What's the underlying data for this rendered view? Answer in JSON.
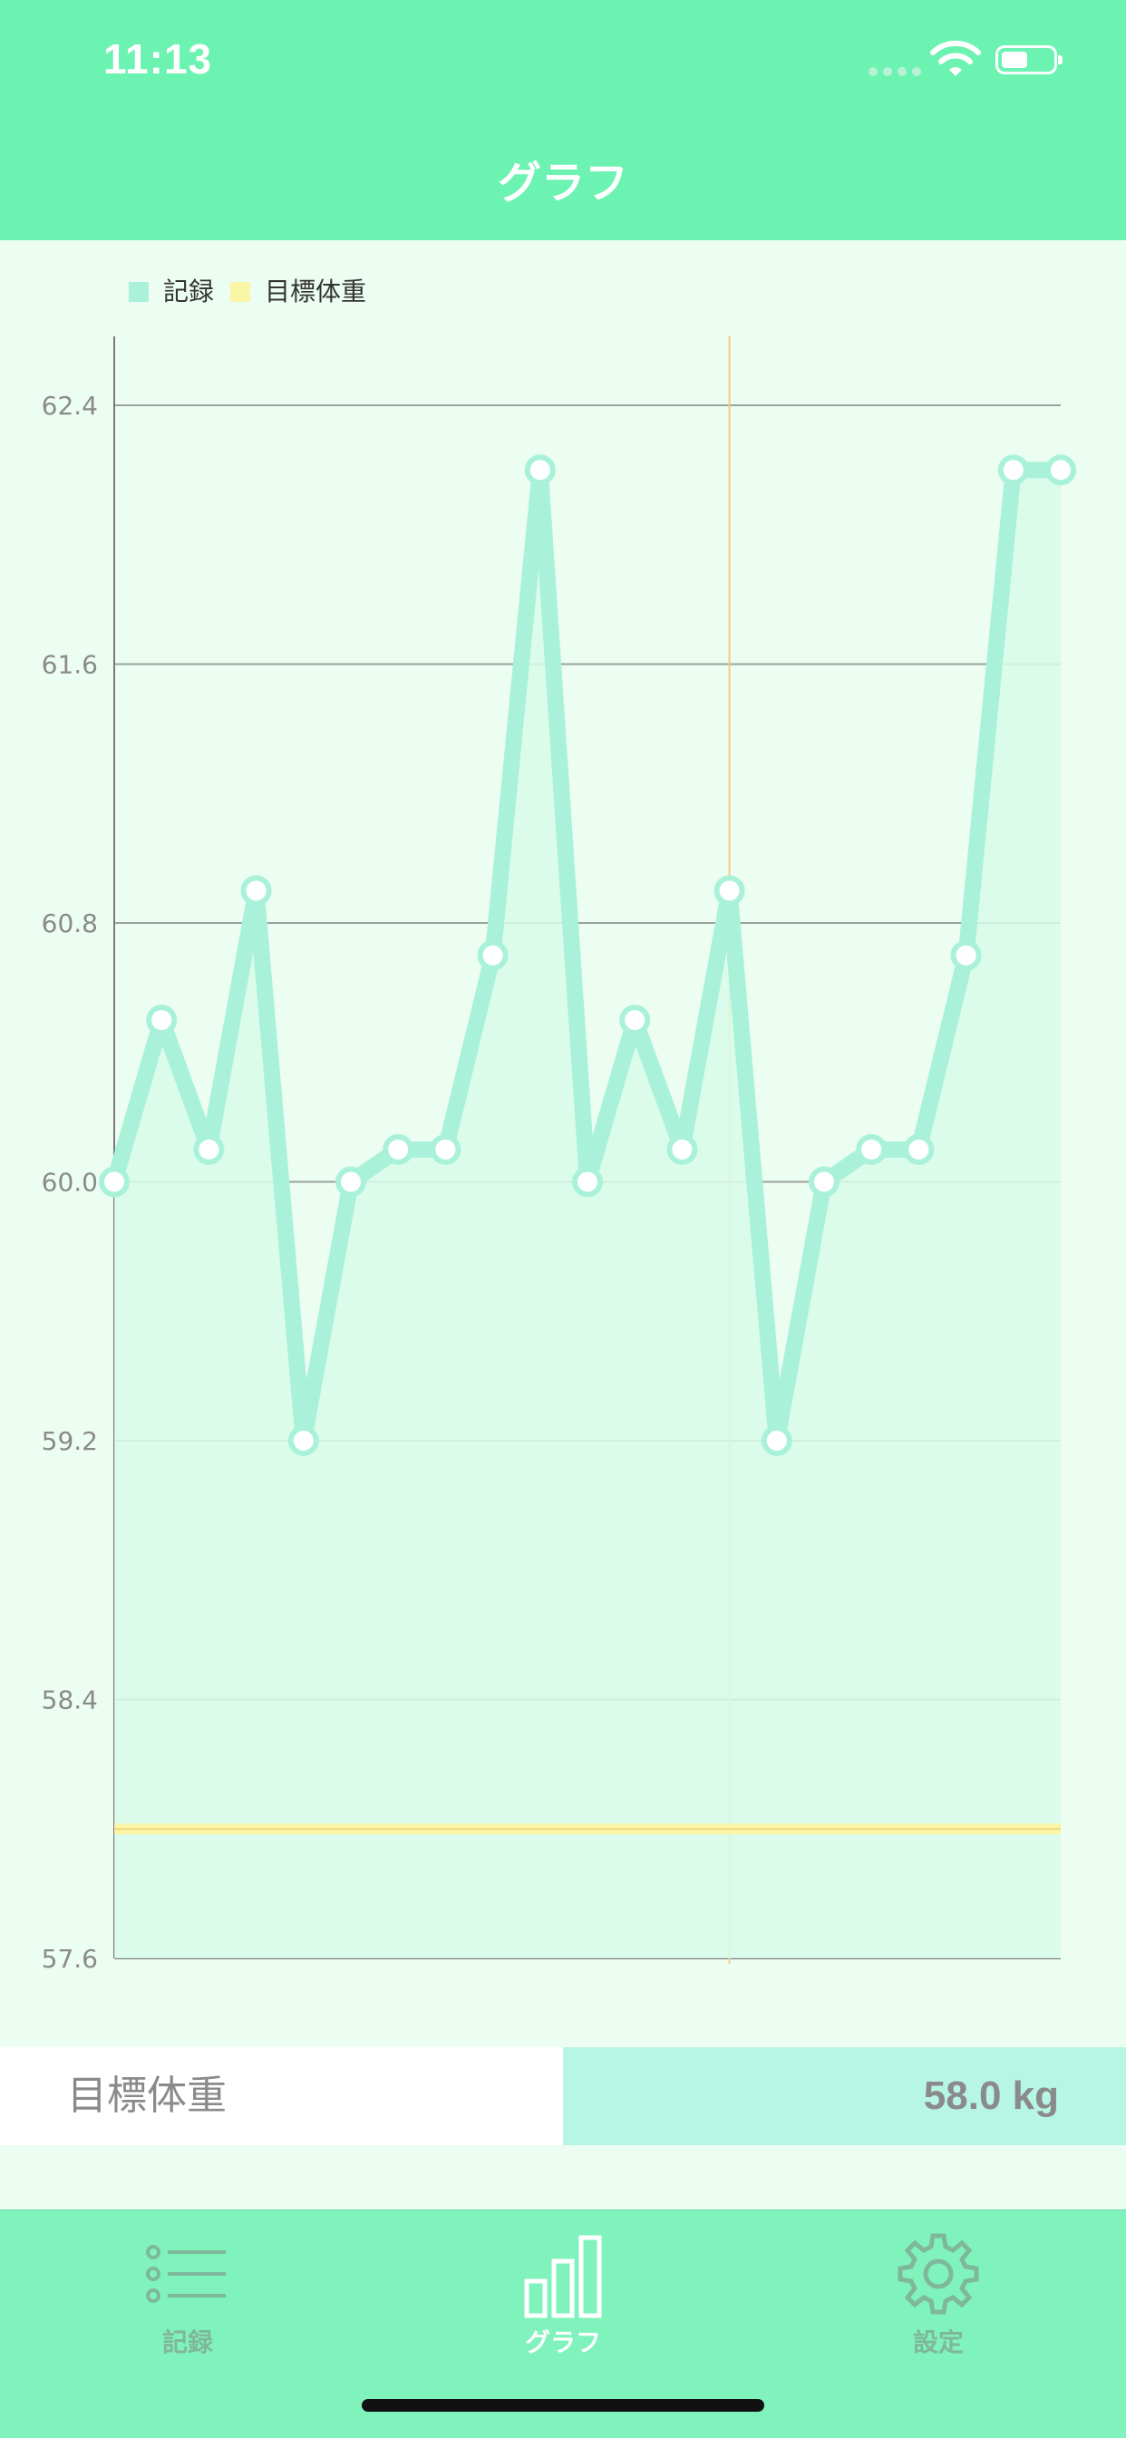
{
  "status_bar": {
    "time": "11:13"
  },
  "nav": {
    "title": "グラフ"
  },
  "colors": {
    "header": "#6cf3b1",
    "record_line": "#a9f2d9",
    "target_line": "#faf6a8",
    "tabbar": "#80f3bc"
  },
  "chart_data": {
    "type": "line",
    "legend": [
      {
        "name": "記録",
        "color": "#a9f2d9"
      },
      {
        "name": "目標体重",
        "color": "#faf6a8"
      }
    ],
    "legend_position": "top-left",
    "y_ticks": [
      "62.4",
      "61.6",
      "60.8",
      "60.0",
      "59.2",
      "58.4",
      "57.6"
    ],
    "ylim": [
      57.6,
      62.6
    ],
    "grid": true,
    "series": [
      {
        "name": "記録",
        "values": [
          60.0,
          60.5,
          60.1,
          60.9,
          59.2,
          60.0,
          60.1,
          60.1,
          60.7,
          62.2,
          60.0,
          60.5,
          60.1,
          60.9,
          59.2,
          60.0,
          60.1,
          60.1,
          60.7,
          62.2,
          62.2
        ]
      },
      {
        "name": "目標体重",
        "values": [
          58.0
        ]
      }
    ],
    "highlight_index": 13
  },
  "target": {
    "label": "目標体重",
    "value": "58.0 kg"
  },
  "tabs": [
    {
      "label": "記録",
      "icon": "list-icon",
      "active": false
    },
    {
      "label": "グラフ",
      "icon": "bar-chart-icon",
      "active": true
    },
    {
      "label": "設定",
      "icon": "gear-icon",
      "active": false
    }
  ]
}
